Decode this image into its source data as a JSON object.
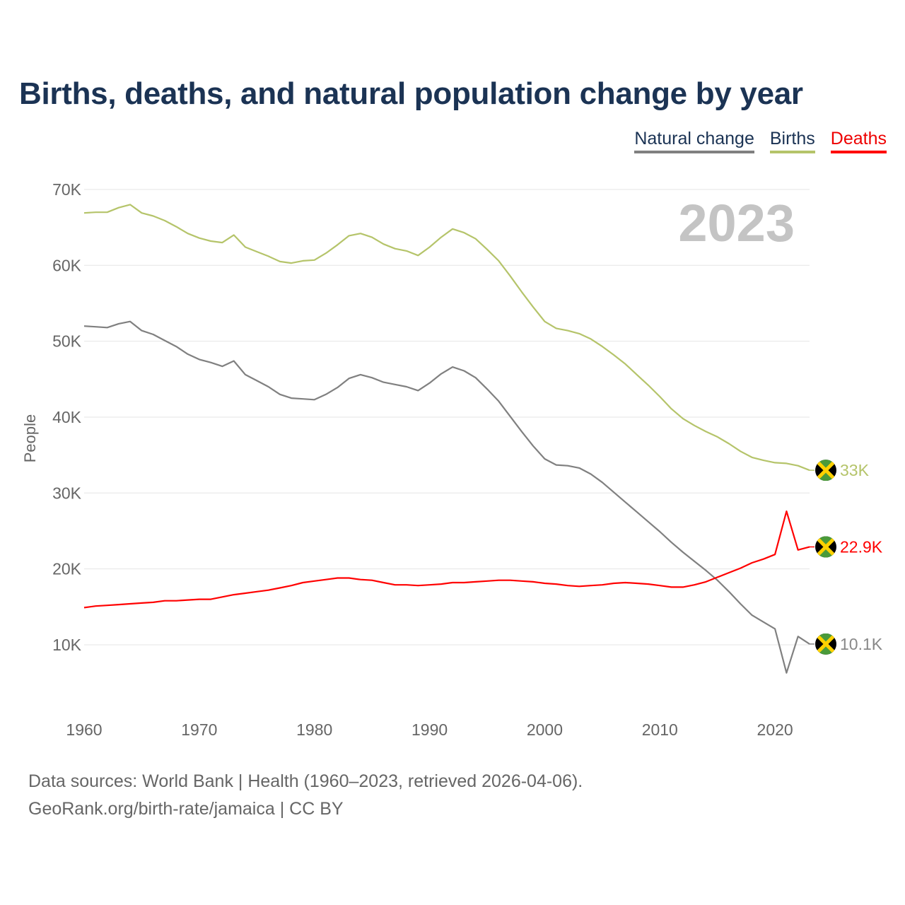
{
  "chart_data": {
    "type": "line",
    "title": "Births, deaths, and natural population change by year",
    "ylabel": "People",
    "xlabel": "",
    "ylim": [
      0,
      70000
    ],
    "yticks": [
      10000,
      20000,
      30000,
      40000,
      50000,
      60000,
      70000
    ],
    "ytick_labels": [
      "10K",
      "20K",
      "30K",
      "40K",
      "50K",
      "60K",
      "70K"
    ],
    "xticks": [
      1960,
      1970,
      1980,
      1990,
      2000,
      2010,
      2020
    ],
    "xtick_labels": [
      "1960",
      "1970",
      "1980",
      "1990",
      "2000",
      "2010",
      "2020"
    ],
    "xlim": [
      1960,
      2023
    ],
    "grid": true,
    "legend_placement": "top-right",
    "year_label": "2023",
    "x": [
      1960,
      1961,
      1962,
      1963,
      1964,
      1965,
      1966,
      1967,
      1968,
      1969,
      1970,
      1971,
      1972,
      1973,
      1974,
      1975,
      1976,
      1977,
      1978,
      1979,
      1980,
      1981,
      1982,
      1983,
      1984,
      1985,
      1986,
      1987,
      1988,
      1989,
      1990,
      1991,
      1992,
      1993,
      1994,
      1995,
      1996,
      1997,
      1998,
      1999,
      2000,
      2001,
      2002,
      2003,
      2004,
      2005,
      2006,
      2007,
      2008,
      2009,
      2010,
      2011,
      2012,
      2013,
      2014,
      2015,
      2016,
      2017,
      2018,
      2019,
      2020,
      2021,
      2022,
      2023
    ],
    "series": [
      {
        "name": "Natural change",
        "color": "#808080",
        "end_label": "10.1K",
        "values": [
          52.0,
          51.9,
          51.8,
          52.3,
          52.6,
          51.4,
          50.9,
          50.1,
          49.3,
          48.3,
          47.6,
          47.2,
          46.7,
          47.4,
          45.6,
          44.8,
          44.0,
          43.0,
          42.5,
          42.4,
          42.3,
          43.0,
          43.9,
          45.1,
          45.6,
          45.2,
          44.6,
          44.3,
          44.0,
          43.5,
          44.5,
          45.7,
          46.6,
          46.1,
          45.2,
          43.7,
          42.1,
          40.1,
          38.1,
          36.2,
          34.5,
          33.7,
          33.6,
          33.3,
          32.5,
          31.4,
          30.1,
          28.8,
          27.5,
          26.2,
          24.9,
          23.5,
          22.2,
          21.0,
          19.8,
          18.5,
          17.0,
          15.4,
          13.9,
          13.0,
          12.1,
          6.3,
          11.1,
          10.1
        ]
      },
      {
        "name": "Births",
        "color": "#b5c46a",
        "end_label": "33K",
        "values": [
          66.9,
          67.0,
          67.0,
          67.6,
          68.0,
          66.9,
          66.5,
          65.9,
          65.1,
          64.2,
          63.6,
          63.2,
          63.0,
          64.0,
          62.4,
          61.8,
          61.2,
          60.5,
          60.3,
          60.6,
          60.7,
          61.6,
          62.7,
          63.9,
          64.2,
          63.7,
          62.8,
          62.2,
          61.9,
          61.3,
          62.4,
          63.7,
          64.8,
          64.3,
          63.5,
          62.1,
          60.6,
          58.6,
          56.5,
          54.5,
          52.6,
          51.7,
          51.4,
          51.0,
          50.3,
          49.3,
          48.2,
          47.0,
          45.6,
          44.2,
          42.7,
          41.1,
          39.8,
          38.9,
          38.1,
          37.4,
          36.5,
          35.5,
          34.7,
          34.3,
          34.0,
          33.9,
          33.6,
          33.0
        ]
      },
      {
        "name": "Deaths",
        "color": "#ff0000",
        "end_label": "22.9K",
        "values": [
          14.9,
          15.1,
          15.2,
          15.3,
          15.4,
          15.5,
          15.6,
          15.8,
          15.8,
          15.9,
          16.0,
          16.0,
          16.3,
          16.6,
          16.8,
          17.0,
          17.2,
          17.5,
          17.8,
          18.2,
          18.4,
          18.6,
          18.8,
          18.8,
          18.6,
          18.5,
          18.2,
          17.9,
          17.9,
          17.8,
          17.9,
          18.0,
          18.2,
          18.2,
          18.3,
          18.4,
          18.5,
          18.5,
          18.4,
          18.3,
          18.1,
          18.0,
          17.8,
          17.7,
          17.8,
          17.9,
          18.1,
          18.2,
          18.1,
          18.0,
          17.8,
          17.6,
          17.6,
          17.9,
          18.3,
          18.9,
          19.5,
          20.1,
          20.8,
          21.3,
          21.9,
          27.6,
          22.5,
          22.9
        ]
      }
    ],
    "values_unit": "thousands of people"
  },
  "footer": {
    "line1": "Data sources: World Bank | Health (1960–2023, retrieved 2026-04-06).",
    "line2": "GeoRank.org/birth-rate/jamaica | CC BY"
  }
}
